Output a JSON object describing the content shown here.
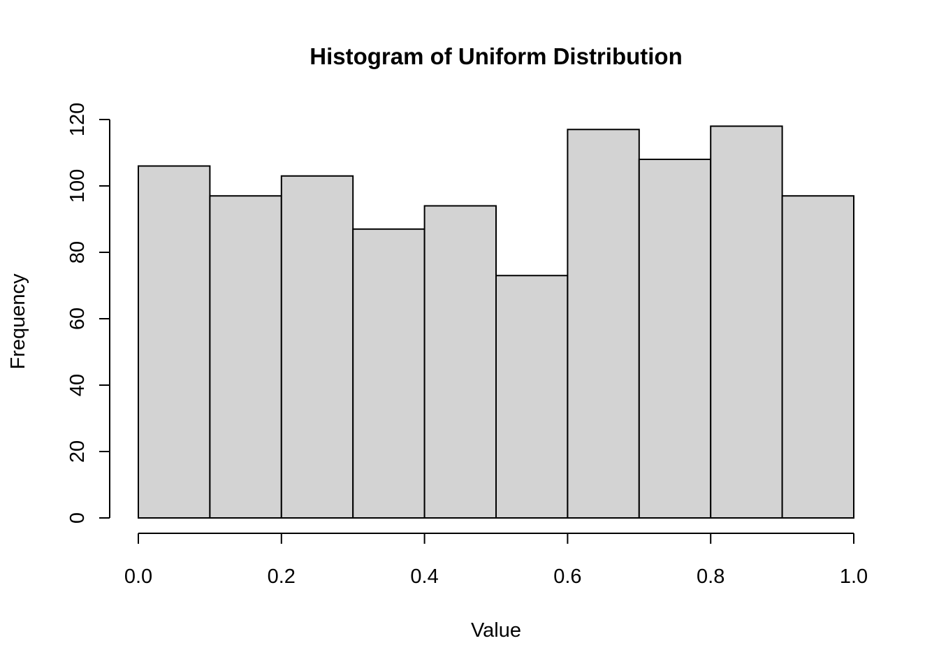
{
  "chart_data": {
    "type": "bar",
    "subtype": "histogram",
    "title": "Histogram of Uniform Distribution",
    "xlabel": "Value",
    "ylabel": "Frequency",
    "bin_edges": [
      0.0,
      0.1,
      0.2,
      0.3,
      0.4,
      0.5,
      0.6,
      0.7,
      0.8,
      0.9,
      1.0
    ],
    "values": [
      106,
      97,
      103,
      87,
      94,
      73,
      117,
      108,
      118,
      97
    ],
    "xlim": [
      0,
      1
    ],
    "ylim": [
      0,
      120
    ],
    "x_ticks": [
      0.0,
      0.2,
      0.4,
      0.6,
      0.8,
      1.0
    ],
    "x_tick_labels": [
      "0.0",
      "0.2",
      "0.4",
      "0.6",
      "0.8",
      "1.0"
    ],
    "y_ticks": [
      0,
      20,
      40,
      60,
      80,
      100,
      120
    ],
    "y_tick_labels": [
      "0",
      "20",
      "40",
      "60",
      "80",
      "100",
      "120"
    ],
    "bar_fill": "#d3d3d3",
    "bar_stroke": "#000000",
    "grid": false
  }
}
